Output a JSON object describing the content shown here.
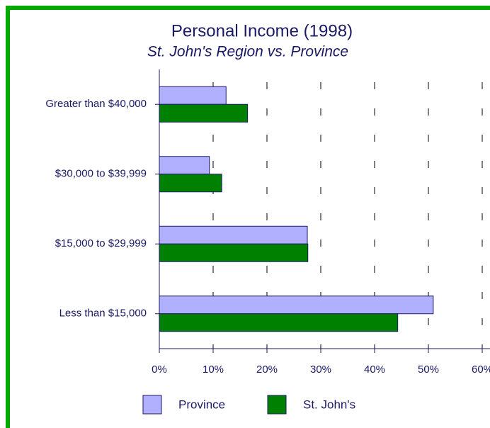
{
  "chart_data": {
    "type": "bar",
    "orientation": "horizontal",
    "title": "Personal Income (1998)",
    "subtitle": "St. John's Region vs. Province",
    "categories": [
      "Greater than $40,000",
      "$30,000 to $39,999",
      "$15,000 to $29,999",
      "Less than $15,000"
    ],
    "series": [
      {
        "name": "Province",
        "color": "#b0b0ff",
        "values": [
          12.4,
          9.3,
          27.5,
          50.9
        ]
      },
      {
        "name": "St. John's",
        "color": "#008000",
        "values": [
          16.4,
          11.6,
          27.6,
          44.3
        ]
      }
    ],
    "xlim": [
      0,
      60
    ],
    "xticks": [
      {
        "value": 0,
        "label": "0%"
      },
      {
        "value": 10,
        "label": "10%"
      },
      {
        "value": 20,
        "label": "20%"
      },
      {
        "value": 30,
        "label": "30%"
      },
      {
        "value": 40,
        "label": "40%"
      },
      {
        "value": 50,
        "label": "50%"
      },
      {
        "value": 60,
        "label": "60%"
      }
    ],
    "grid": true,
    "legend": "bottom"
  }
}
